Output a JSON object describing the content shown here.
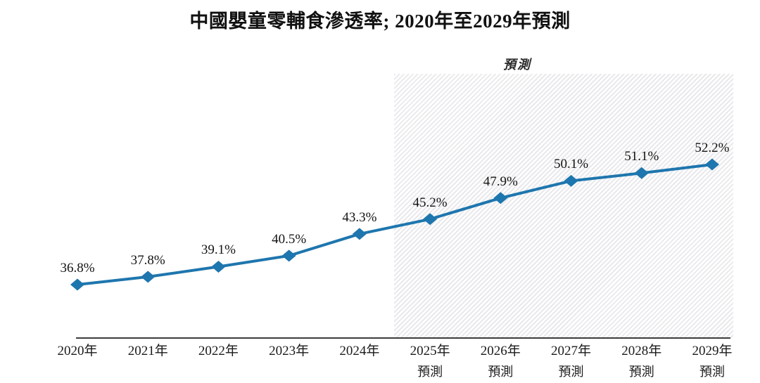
{
  "chart_data": {
    "type": "line",
    "title": "中國嬰童零輔食滲透率; 2020年至2029年預測",
    "forecast_label": "預測",
    "categories": [
      "2020年",
      "2021年",
      "2022年",
      "2023年",
      "2024年",
      "2025年",
      "2026年",
      "2027年",
      "2028年",
      "2029年"
    ],
    "category_sublabels": [
      "",
      "",
      "",
      "",
      "",
      "預測",
      "預測",
      "預測",
      "預測",
      "預測"
    ],
    "values": [
      36.8,
      37.8,
      39.1,
      40.5,
      43.3,
      45.2,
      47.9,
      50.1,
      51.1,
      52.2
    ],
    "point_labels": [
      "36.8%",
      "37.8%",
      "39.1%",
      "40.5%",
      "43.3%",
      "45.2%",
      "47.9%",
      "50.1%",
      "51.1%",
      "52.2%"
    ],
    "forecast_start_index": 5,
    "line_color": "#1e76ae",
    "marker": "diamond",
    "xlabel": "",
    "ylabel": "",
    "grid": false,
    "legend_position": "none"
  }
}
